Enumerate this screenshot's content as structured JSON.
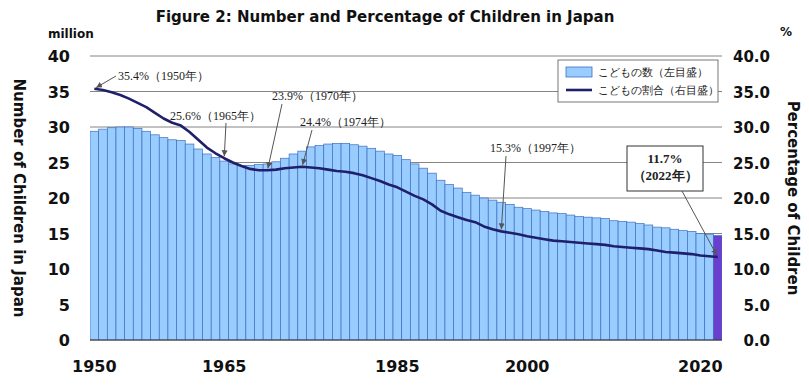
{
  "chart_data": {
    "type": "bar",
    "title": "Figure 2: Number and Percentage of Children in Japan",
    "y_label": "Number of Children in Japan",
    "y2_label": "Percentage of Children",
    "y_unit": "million",
    "y2_unit": "%",
    "categories": [
      "1950",
      null,
      null,
      null,
      null,
      null,
      null,
      null,
      null,
      null,
      null,
      null,
      null,
      null,
      null,
      "1965",
      null,
      null,
      null,
      null,
      null,
      null,
      null,
      null,
      null,
      null,
      null,
      null,
      null,
      null,
      null,
      null,
      null,
      null,
      null,
      "1985",
      null,
      null,
      null,
      null,
      null,
      null,
      null,
      null,
      null,
      null,
      null,
      null,
      null,
      null,
      "2000",
      null,
      null,
      null,
      null,
      null,
      null,
      null,
      null,
      null,
      null,
      null,
      null,
      null,
      null,
      null,
      null,
      null,
      null,
      null,
      "2020",
      null,
      null
    ],
    "series": [
      {
        "name": "こどもの数（左目盛）",
        "type": "bar",
        "color": "#99ccff",
        "colors": [
          "#99ccff",
          "#99ccff",
          "#99ccff",
          "#99ccff",
          "#99ccff",
          "#99ccff",
          "#99ccff",
          "#99ccff",
          "#99ccff",
          "#99ccff",
          "#99ccff",
          "#99ccff",
          "#99ccff",
          "#99ccff",
          "#99ccff",
          "#99ccff",
          "#99ccff",
          "#99ccff",
          "#99ccff",
          "#99ccff",
          "#99ccff",
          "#99ccff",
          "#99ccff",
          "#99ccff",
          "#99ccff",
          "#99ccff",
          "#99ccff",
          "#99ccff",
          "#99ccff",
          "#99ccff",
          "#99ccff",
          "#99ccff",
          "#99ccff",
          "#99ccff",
          "#99ccff",
          "#99ccff",
          "#99ccff",
          "#99ccff",
          "#99ccff",
          "#99ccff",
          "#99ccff",
          "#99ccff",
          "#99ccff",
          "#99ccff",
          "#99ccff",
          "#99ccff",
          "#99ccff",
          "#99ccff",
          "#99ccff",
          "#99ccff",
          "#99ccff",
          "#99ccff",
          "#99ccff",
          "#99ccff",
          "#99ccff",
          "#99ccff",
          "#99ccff",
          "#99ccff",
          "#99ccff",
          "#99ccff",
          "#99ccff",
          "#99ccff",
          "#99ccff",
          "#99ccff",
          "#99ccff",
          "#99ccff",
          "#99ccff",
          "#99ccff",
          "#99ccff",
          "#99ccff",
          "#99ccff",
          "#99ccff",
          "#6a3fd0"
        ],
        "values": [
          29.4,
          29.7,
          29.9,
          30.0,
          30.0,
          29.8,
          29.4,
          28.9,
          28.5,
          28.2,
          28.1,
          27.6,
          26.9,
          26.2,
          25.7,
          25.2,
          24.8,
          24.6,
          24.6,
          24.7,
          24.8,
          25.1,
          25.6,
          26.2,
          26.6,
          27.2,
          27.4,
          27.6,
          27.7,
          27.7,
          27.5,
          27.3,
          27.0,
          26.6,
          26.2,
          26.0,
          25.4,
          24.8,
          24.2,
          23.5,
          22.5,
          21.9,
          21.4,
          20.8,
          20.4,
          20.0,
          19.7,
          19.4,
          19.1,
          18.7,
          18.5,
          18.3,
          18.1,
          17.9,
          17.8,
          17.6,
          17.4,
          17.3,
          17.2,
          17.1,
          16.8,
          16.7,
          16.6,
          16.4,
          16.2,
          15.9,
          15.8,
          15.6,
          15.4,
          15.3,
          15.0,
          14.9,
          14.7
        ]
      },
      {
        "name": "こどもの割合（右目盛）",
        "type": "line",
        "color": "#1f1f6b",
        "axis": "y2",
        "values": [
          35.4,
          35.2,
          34.9,
          34.5,
          34.0,
          33.4,
          32.8,
          32.0,
          31.2,
          30.6,
          30.2,
          29.3,
          28.2,
          27.1,
          26.3,
          25.6,
          25.0,
          24.5,
          24.1,
          23.9,
          23.9,
          24.0,
          24.2,
          24.3,
          24.4,
          24.3,
          24.2,
          24.0,
          23.8,
          23.7,
          23.5,
          23.2,
          22.8,
          22.4,
          21.9,
          21.5,
          20.9,
          20.3,
          19.8,
          19.1,
          18.2,
          17.7,
          17.3,
          16.9,
          16.6,
          16.0,
          15.6,
          15.3,
          15.1,
          14.9,
          14.6,
          14.4,
          14.2,
          14.0,
          13.9,
          13.8,
          13.7,
          13.6,
          13.5,
          13.4,
          13.2,
          13.1,
          13.0,
          12.9,
          12.8,
          12.6,
          12.4,
          12.3,
          12.2,
          12.1,
          11.9,
          11.8,
          11.7
        ]
      }
    ],
    "ylim": [
      0,
      40
    ],
    "yticks": [
      0,
      5,
      10,
      15,
      20,
      25,
      30,
      35,
      40
    ],
    "y2lim": [
      0,
      40
    ],
    "y2ticks": [
      {
        "value": 0,
        "label": "0.0"
      },
      {
        "value": 5,
        "label": "5.0"
      },
      {
        "value": 10,
        "label": "10.0"
      },
      {
        "value": 15,
        "label": "15.0"
      },
      {
        "value": 20,
        "label": "20.0"
      },
      {
        "value": 25,
        "label": "25.0"
      },
      {
        "value": 30,
        "label": "30.0"
      },
      {
        "value": 35,
        "label": "35.0"
      },
      {
        "value": 40,
        "label": "40.0"
      }
    ],
    "grid": true,
    "legend": "top-right",
    "annotations": [
      {
        "text": "35.4%（1950年）",
        "x": 1950
      },
      {
        "text": "25.6%（1965年）",
        "x": 1965
      },
      {
        "text": "23.9%（1970年）",
        "x": 1970
      },
      {
        "text": "24.4%（1974年）",
        "x": 1974
      },
      {
        "text": "15.3%（1997年）",
        "x": 1997
      },
      {
        "text": "11.7%\n（2022年）",
        "x": 2022
      }
    ]
  }
}
